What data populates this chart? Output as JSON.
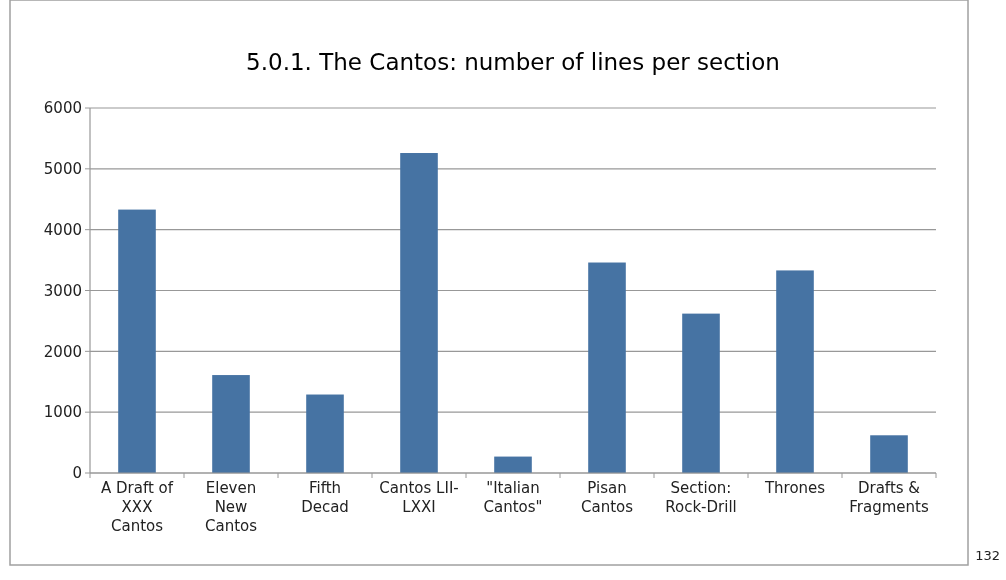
{
  "chart_data": {
    "type": "bar",
    "title": "5.0.1. The Cantos: number of lines per section",
    "categories": [
      "A Draft of\nXXX\nCantos",
      "Eleven\nNew\nCantos",
      "Fifth\nDecad",
      "Cantos LII-\nLXXI",
      "\"Italian\nCantos\"",
      "Pisan\nCantos",
      "Section:\nRock-Drill",
      "Thrones",
      "Drafts &\nFragments"
    ],
    "values": [
      4330,
      1610,
      1290,
      5260,
      270,
      3460,
      2620,
      3330,
      620
    ],
    "color": "#4673a3",
    "ylim": [
      0,
      6000
    ],
    "yticks": [
      0,
      1000,
      2000,
      3000,
      4000,
      5000,
      6000
    ],
    "grid": "y",
    "annotations": [
      "132"
    ]
  }
}
